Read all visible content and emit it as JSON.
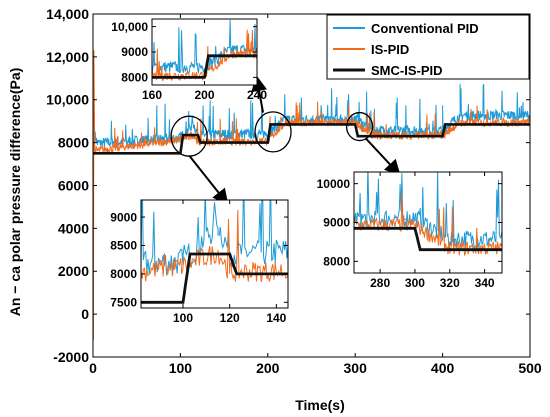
{
  "colors": {
    "conventional": "#1f9ad6",
    "is": "#f26a1b",
    "smc": "#111111",
    "axes": "#000000"
  },
  "chart_data": {
    "type": "line",
    "title": "",
    "xlabel": "Time(s)",
    "ylabel": "An − ca polar pressure difference(Pa)",
    "xlim": [
      0,
      500
    ],
    "ylim": [
      -2000,
      14000
    ],
    "xticks": [
      0,
      100,
      200,
      300,
      400,
      500
    ],
    "xtick_labels": [
      "0",
      "100",
      "200",
      "300",
      "400",
      "500"
    ],
    "yticks": [
      -2000,
      0,
      2000,
      4000,
      6000,
      8000,
      10000,
      12000,
      14000
    ],
    "ytick_labels": [
      "-2000",
      "0",
      "2000",
      "4000",
      "6000",
      "8000",
      "10,000",
      "12,000",
      "14,000"
    ],
    "legend_position": "top-right",
    "series": [
      {
        "name": "Conventional PID",
        "key": "conventional",
        "noise": "high",
        "x": [
          0,
          1,
          2,
          5,
          100,
          115,
          120,
          200,
          220,
          300,
          320,
          400,
          420,
          500
        ],
        "values": [
          7600,
          9800,
          8300,
          7900,
          8150,
          8800,
          8300,
          8350,
          9000,
          9050,
          8500,
          8500,
          9200,
          9200
        ]
      },
      {
        "name": "IS-PID",
        "key": "is",
        "noise": "medium",
        "x": [
          0,
          0.5,
          1,
          2,
          5,
          100,
          115,
          120,
          200,
          220,
          300,
          320,
          400,
          420,
          500
        ],
        "values": [
          7500,
          -1200,
          12300,
          7600,
          7600,
          8100,
          8350,
          8000,
          8050,
          8900,
          8900,
          8300,
          8300,
          8900,
          8900
        ]
      },
      {
        "name": "SMC-IS-PID",
        "key": "smc",
        "noise": "none",
        "x": [
          0,
          100,
          103,
          120,
          123,
          200,
          203,
          220,
          223,
          300,
          303,
          320,
          323,
          400,
          403,
          500
        ],
        "values": [
          7500,
          7500,
          8350,
          8350,
          8000,
          8000,
          8850,
          8850,
          8850,
          8850,
          8300,
          8300,
          8300,
          8300,
          8850,
          8850
        ]
      }
    ],
    "insets": [
      {
        "id": "inset-a",
        "xlim": [
          160,
          240
        ],
        "ylim": [
          7700,
          10300
        ],
        "xticks": [
          160,
          200,
          240
        ],
        "xtick_labels": [
          "160",
          "200",
          "240"
        ],
        "yticks": [
          8000,
          9000,
          10000
        ],
        "ytick_labels": [
          "8000",
          "9000",
          "10,000"
        ]
      },
      {
        "id": "inset-b",
        "xlim": [
          82,
          145
        ],
        "ylim": [
          7400,
          9300
        ],
        "xticks": [
          100,
          120,
          140
        ],
        "xtick_labels": [
          "100",
          "120",
          "140"
        ],
        "yticks": [
          7500,
          8000,
          8500,
          9000
        ],
        "ytick_labels": [
          "7500",
          "8000",
          "8500",
          "9000"
        ]
      },
      {
        "id": "inset-c",
        "xlim": [
          265,
          350
        ],
        "ylim": [
          7700,
          10300
        ],
        "xticks": [
          280,
          300,
          320,
          340
        ],
        "xtick_labels": [
          "280",
          "300",
          "320",
          "340"
        ],
        "yticks": [
          8000,
          9000,
          10000
        ],
        "ytick_labels": [
          "8000",
          "9000",
          "10000"
        ]
      }
    ]
  }
}
